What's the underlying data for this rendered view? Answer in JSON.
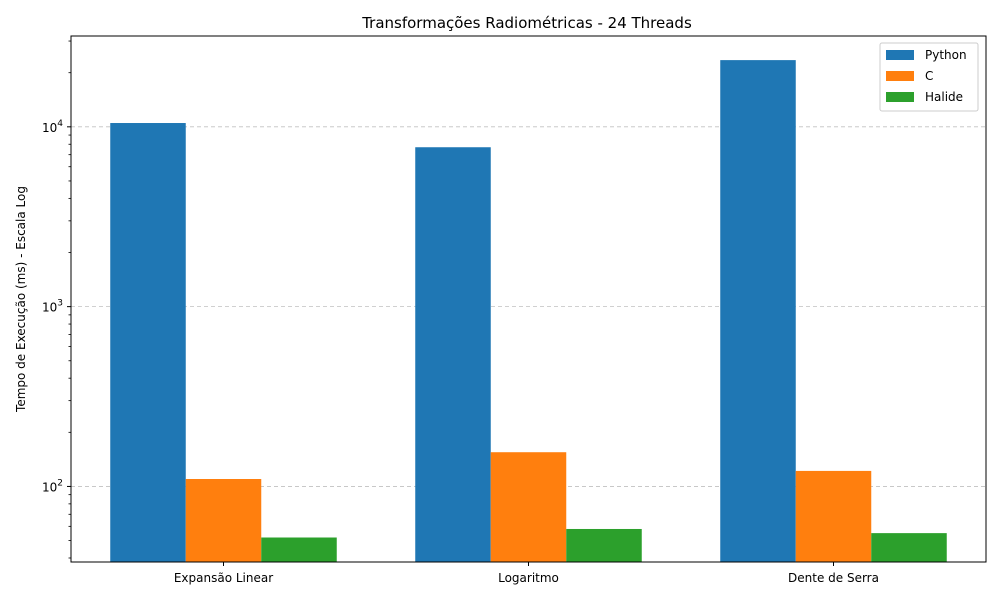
{
  "chart_data": {
    "type": "bar",
    "title": "Transformações Radiométricas - 24 Threads",
    "xlabel": "",
    "ylabel": "Tempo de Execução (ms) - Escala Log",
    "yscale": "log",
    "ylim": [
      38,
      32000
    ],
    "grid": "y dashed",
    "legend_position": "top-right",
    "categories": [
      "Expansão Linear",
      "Logaritmo",
      "Dente de Serra"
    ],
    "series": [
      {
        "name": "Python",
        "color": "#1f77b4",
        "values": [
          10500,
          7700,
          23500
        ]
      },
      {
        "name": "C",
        "color": "#ff7f0e",
        "values": [
          110,
          155,
          122
        ]
      },
      {
        "name": "Halide",
        "color": "#2ca02c",
        "values": [
          52,
          58,
          55
        ]
      }
    ],
    "y_ticks": [
      {
        "value": 100,
        "base": "10",
        "exp": "2"
      },
      {
        "value": 1000,
        "base": "10",
        "exp": "3"
      },
      {
        "value": 10000,
        "base": "10",
        "exp": "4"
      }
    ]
  }
}
